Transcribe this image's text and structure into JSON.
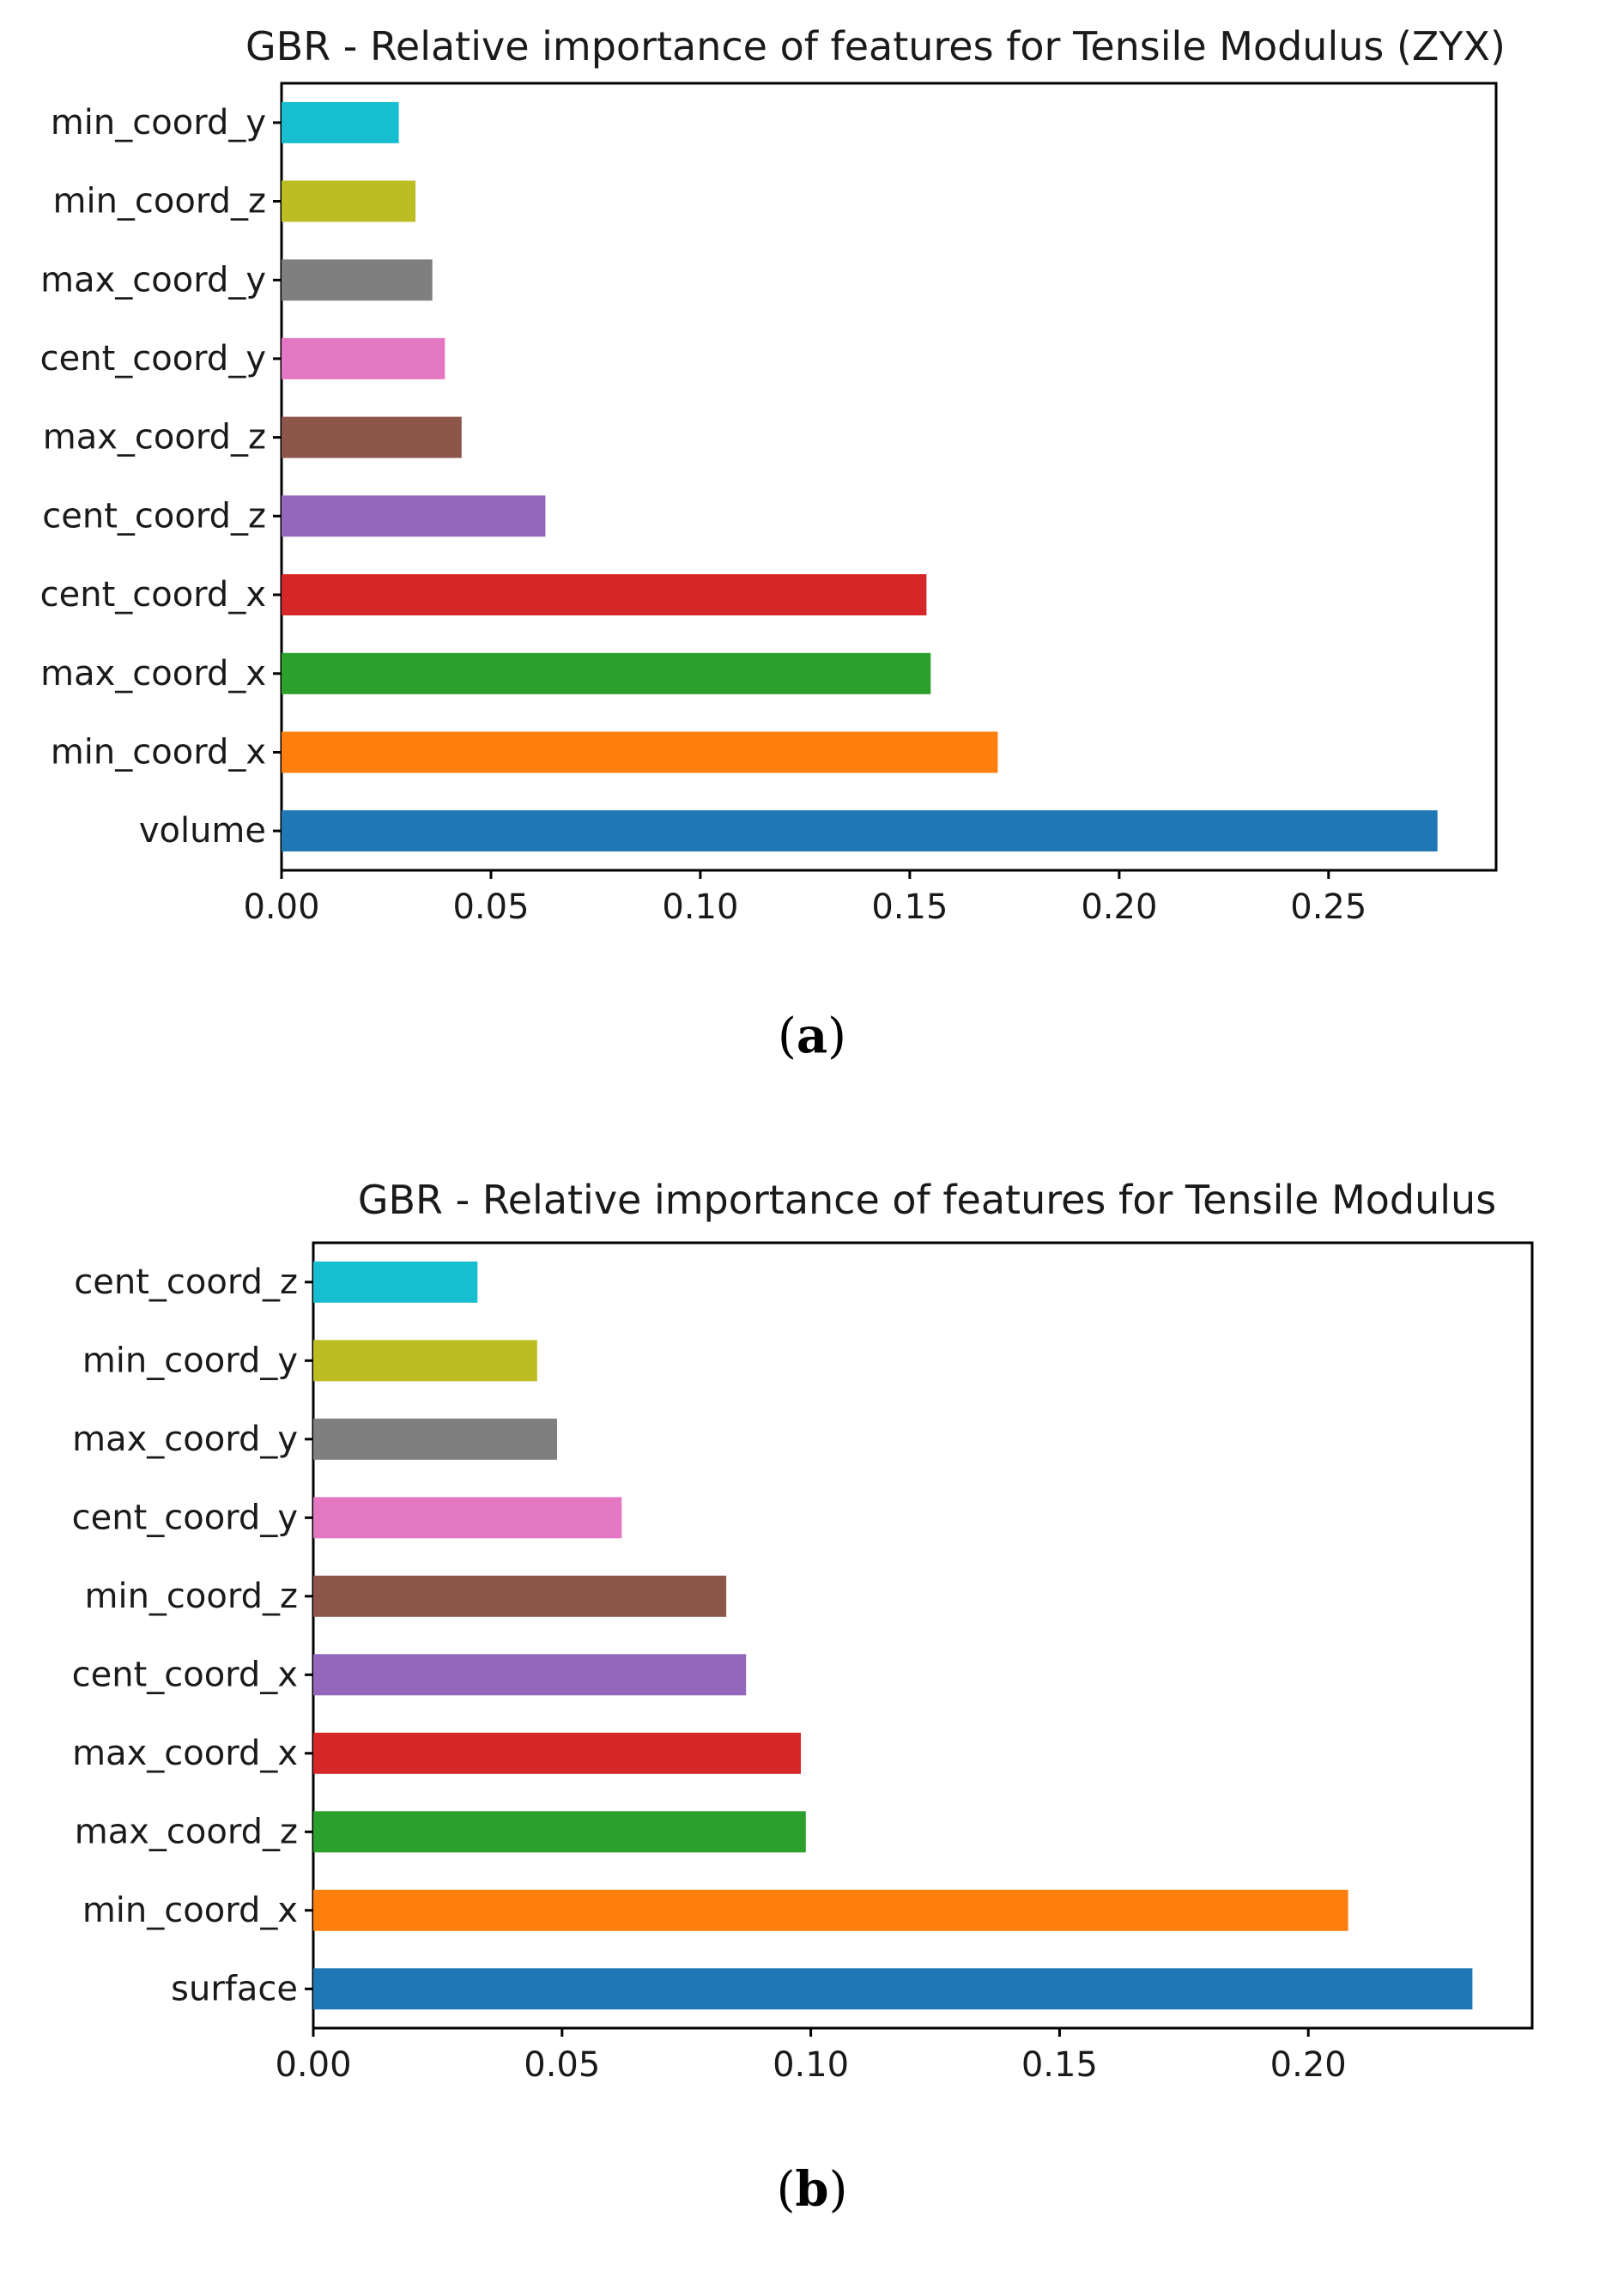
{
  "chart_data": [
    {
      "type": "bar",
      "orientation": "horizontal",
      "title": "GBR - Relative importance of features for Tensile Modulus (ZYX)",
      "panel_label": "a",
      "xlabel": "",
      "ylabel": "",
      "xlim": [
        0,
        0.29
      ],
      "xticks": [
        0.0,
        0.05,
        0.1,
        0.15,
        0.2,
        0.25
      ],
      "xtick_labels": [
        "0.00",
        "0.05",
        "0.10",
        "0.15",
        "0.20",
        "0.25"
      ],
      "categories": [
        "volume",
        "min_coord_x",
        "max_coord_x",
        "cent_coord_x",
        "cent_coord_z",
        "max_coord_z",
        "cent_coord_y",
        "max_coord_y",
        "min_coord_z",
        "min_coord_y"
      ],
      "values": [
        0.276,
        0.171,
        0.155,
        0.154,
        0.063,
        0.043,
        0.039,
        0.036,
        0.032,
        0.028
      ],
      "colors": [
        "#1f77b4",
        "#ff7f0e",
        "#2ca02c",
        "#d62728",
        "#9467bd",
        "#8c564b",
        "#e377c2",
        "#7f7f7f",
        "#bcbd22",
        "#17becf"
      ],
      "grid": false,
      "legend": "none"
    },
    {
      "type": "bar",
      "orientation": "horizontal",
      "title": "GBR - Relative importance of features for Tensile Modulus",
      "panel_label": "b",
      "xlabel": "",
      "ylabel": "",
      "xlim": [
        0,
        0.245
      ],
      "xticks": [
        0.0,
        0.05,
        0.1,
        0.15,
        0.2
      ],
      "xtick_labels": [
        "0.00",
        "0.05",
        "0.10",
        "0.15",
        "0.20"
      ],
      "categories": [
        "surface",
        "min_coord_x",
        "max_coord_z",
        "max_coord_x",
        "cent_coord_x",
        "min_coord_z",
        "cent_coord_y",
        "max_coord_y",
        "min_coord_y",
        "cent_coord_z"
      ],
      "values": [
        0.233,
        0.208,
        0.099,
        0.098,
        0.087,
        0.083,
        0.062,
        0.049,
        0.045,
        0.033
      ],
      "colors": [
        "#1f77b4",
        "#ff7f0e",
        "#2ca02c",
        "#d62728",
        "#9467bd",
        "#8c564b",
        "#e377c2",
        "#7f7f7f",
        "#bcbd22",
        "#17becf"
      ],
      "grid": false,
      "legend": "none"
    }
  ]
}
